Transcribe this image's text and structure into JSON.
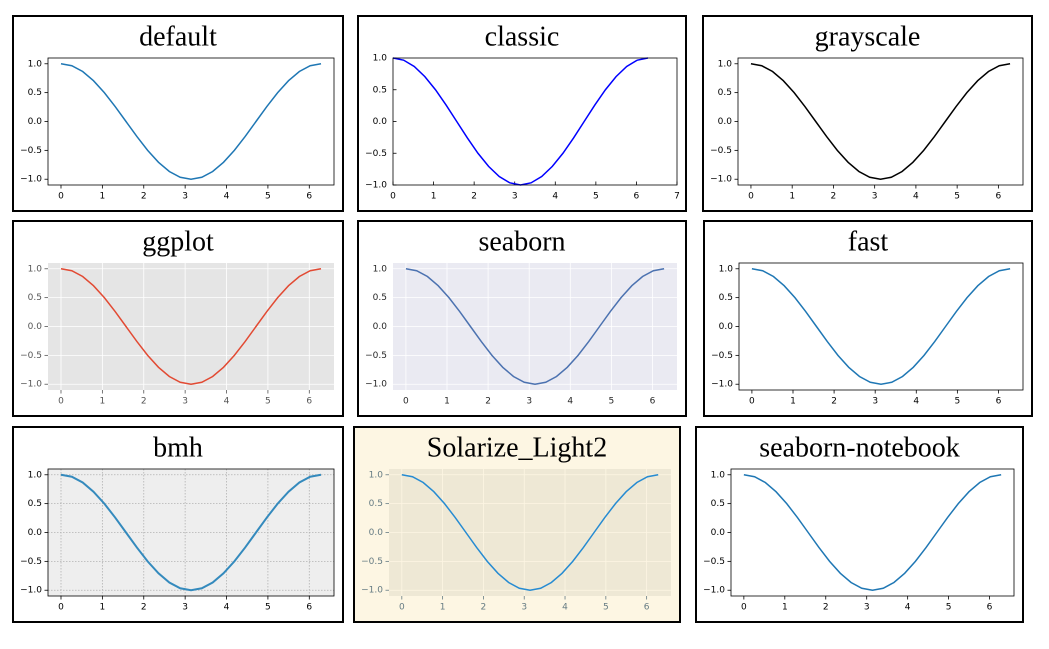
{
  "chart_data": [
    {
      "type": "line",
      "title": "default",
      "color": "#1f77b4",
      "background": "#ffffff",
      "figure_background": "#ffffff",
      "grid": false,
      "grid_color": "#ffffff",
      "grid_style": "solid",
      "tick_direction": "out",
      "tick_color": "#000000",
      "spines": true,
      "x": [
        0,
        0.262,
        0.524,
        0.785,
        1.047,
        1.309,
        1.571,
        1.833,
        2.094,
        2.356,
        2.618,
        2.88,
        3.142,
        3.403,
        3.665,
        3.927,
        4.189,
        4.451,
        4.712,
        4.974,
        5.236,
        5.498,
        5.76,
        6.021,
        6.283
      ],
      "values": [
        1,
        0.966,
        0.866,
        0.707,
        0.5,
        0.259,
        0,
        -0.259,
        -0.5,
        -0.707,
        -0.866,
        -0.966,
        -1,
        -0.966,
        -0.866,
        -0.707,
        -0.5,
        -0.259,
        0,
        0.259,
        0.5,
        0.707,
        0.866,
        0.966,
        1
      ],
      "xlim": [
        -0.314,
        6.597
      ],
      "ylim": [
        -1.1,
        1.1
      ],
      "xticks": [
        0,
        1,
        2,
        3,
        4,
        5,
        6
      ],
      "yticks": [
        {
          "value": -1,
          "label": "−1.0"
        },
        {
          "value": -0.5,
          "label": "−0.5"
        },
        {
          "value": 0,
          "label": "0.0"
        },
        {
          "value": 0.5,
          "label": "0.5"
        },
        {
          "value": 1,
          "label": "1.0"
        }
      ]
    },
    {
      "type": "line",
      "title": "classic",
      "color": "#0000ff",
      "background": "#ffffff",
      "figure_background": "#ffffff",
      "grid": false,
      "grid_color": "#ffffff",
      "grid_style": "solid",
      "tick_direction": "in",
      "tick_color": "#000000",
      "spines": true,
      "x": [
        0,
        0.262,
        0.524,
        0.785,
        1.047,
        1.309,
        1.571,
        1.833,
        2.094,
        2.356,
        2.618,
        2.88,
        3.142,
        3.403,
        3.665,
        3.927,
        4.189,
        4.451,
        4.712,
        4.974,
        5.236,
        5.498,
        5.76,
        6.021,
        6.283
      ],
      "values": [
        1,
        0.966,
        0.866,
        0.707,
        0.5,
        0.259,
        0,
        -0.259,
        -0.5,
        -0.707,
        -0.866,
        -0.966,
        -1,
        -0.966,
        -0.866,
        -0.707,
        -0.5,
        -0.259,
        0,
        0.259,
        0.5,
        0.707,
        0.866,
        0.966,
        1
      ],
      "xlim": [
        0,
        7
      ],
      "ylim": [
        -1,
        1
      ],
      "xticks": [
        0,
        1,
        2,
        3,
        4,
        5,
        6,
        7
      ],
      "yticks": [
        {
          "value": -1,
          "label": "−1.0"
        },
        {
          "value": -0.5,
          "label": "−0.5"
        },
        {
          "value": 0,
          "label": "0.0"
        },
        {
          "value": 0.5,
          "label": "0.5"
        },
        {
          "value": 1,
          "label": "1.0"
        }
      ]
    },
    {
      "type": "line",
      "title": "grayscale",
      "color": "#000000",
      "background": "#ffffff",
      "figure_background": "#ffffff",
      "grid": false,
      "grid_color": "#ffffff",
      "grid_style": "solid",
      "tick_direction": "out",
      "tick_color": "#000000",
      "spines": true,
      "x": [
        0,
        0.262,
        0.524,
        0.785,
        1.047,
        1.309,
        1.571,
        1.833,
        2.094,
        2.356,
        2.618,
        2.88,
        3.142,
        3.403,
        3.665,
        3.927,
        4.189,
        4.451,
        4.712,
        4.974,
        5.236,
        5.498,
        5.76,
        6.021,
        6.283
      ],
      "values": [
        1,
        0.966,
        0.866,
        0.707,
        0.5,
        0.259,
        0,
        -0.259,
        -0.5,
        -0.707,
        -0.866,
        -0.966,
        -1,
        -0.966,
        -0.866,
        -0.707,
        -0.5,
        -0.259,
        0,
        0.259,
        0.5,
        0.707,
        0.866,
        0.966,
        1
      ],
      "xlim": [
        -0.314,
        6.597
      ],
      "ylim": [
        -1.1,
        1.1
      ],
      "xticks": [
        0,
        1,
        2,
        3,
        4,
        5,
        6
      ],
      "yticks": [
        {
          "value": -1,
          "label": "−1.0"
        },
        {
          "value": -0.5,
          "label": "−0.5"
        },
        {
          "value": 0,
          "label": "0.0"
        },
        {
          "value": 0.5,
          "label": "0.5"
        },
        {
          "value": 1,
          "label": "1.0"
        }
      ]
    },
    {
      "type": "line",
      "title": "ggplot",
      "color": "#e24a33",
      "background": "#e5e5e5",
      "figure_background": "#ffffff",
      "grid": true,
      "grid_color": "#ffffff",
      "grid_style": "solid",
      "tick_direction": "out",
      "tick_color": "#555555",
      "spines": false,
      "x": [
        0,
        0.262,
        0.524,
        0.785,
        1.047,
        1.309,
        1.571,
        1.833,
        2.094,
        2.356,
        2.618,
        2.88,
        3.142,
        3.403,
        3.665,
        3.927,
        4.189,
        4.451,
        4.712,
        4.974,
        5.236,
        5.498,
        5.76,
        6.021,
        6.283
      ],
      "values": [
        1,
        0.966,
        0.866,
        0.707,
        0.5,
        0.259,
        0,
        -0.259,
        -0.5,
        -0.707,
        -0.866,
        -0.966,
        -1,
        -0.966,
        -0.866,
        -0.707,
        -0.5,
        -0.259,
        0,
        0.259,
        0.5,
        0.707,
        0.866,
        0.966,
        1
      ],
      "xlim": [
        -0.314,
        6.597
      ],
      "ylim": [
        -1.1,
        1.1
      ],
      "xticks": [
        0,
        1,
        2,
        3,
        4,
        5,
        6
      ],
      "yticks": [
        {
          "value": -1,
          "label": "−1.0"
        },
        {
          "value": -0.5,
          "label": "−0.5"
        },
        {
          "value": 0,
          "label": "0.0"
        },
        {
          "value": 0.5,
          "label": "0.5"
        },
        {
          "value": 1,
          "label": "1.0"
        }
      ]
    },
    {
      "type": "line",
      "title": "seaborn",
      "color": "#4c72b0",
      "background": "#eaeaf2",
      "figure_background": "#ffffff",
      "grid": true,
      "grid_color": "#ffffff",
      "grid_style": "solid",
      "tick_direction": "none",
      "tick_color": "#262626",
      "spines": false,
      "x": [
        0,
        0.262,
        0.524,
        0.785,
        1.047,
        1.309,
        1.571,
        1.833,
        2.094,
        2.356,
        2.618,
        2.88,
        3.142,
        3.403,
        3.665,
        3.927,
        4.189,
        4.451,
        4.712,
        4.974,
        5.236,
        5.498,
        5.76,
        6.021,
        6.283
      ],
      "values": [
        1,
        0.966,
        0.866,
        0.707,
        0.5,
        0.259,
        0,
        -0.259,
        -0.5,
        -0.707,
        -0.866,
        -0.966,
        -1,
        -0.966,
        -0.866,
        -0.707,
        -0.5,
        -0.259,
        0,
        0.259,
        0.5,
        0.707,
        0.866,
        0.966,
        1
      ],
      "xlim": [
        -0.314,
        6.597
      ],
      "ylim": [
        -1.1,
        1.1
      ],
      "xticks": [
        0,
        1,
        2,
        3,
        4,
        5,
        6
      ],
      "yticks": [
        {
          "value": -1,
          "label": "−1.0"
        },
        {
          "value": -0.5,
          "label": "−0.5"
        },
        {
          "value": 0,
          "label": "0.0"
        },
        {
          "value": 0.5,
          "label": "0.5"
        },
        {
          "value": 1,
          "label": "1.0"
        }
      ]
    },
    {
      "type": "line",
      "title": "fast",
      "color": "#1f77b4",
      "background": "#ffffff",
      "figure_background": "#ffffff",
      "grid": false,
      "grid_color": "#ffffff",
      "grid_style": "solid",
      "tick_direction": "out",
      "tick_color": "#000000",
      "spines": true,
      "x": [
        0,
        0.262,
        0.524,
        0.785,
        1.047,
        1.309,
        1.571,
        1.833,
        2.094,
        2.356,
        2.618,
        2.88,
        3.142,
        3.403,
        3.665,
        3.927,
        4.189,
        4.451,
        4.712,
        4.974,
        5.236,
        5.498,
        5.76,
        6.021,
        6.283
      ],
      "values": [
        1,
        0.966,
        0.866,
        0.707,
        0.5,
        0.259,
        0,
        -0.259,
        -0.5,
        -0.707,
        -0.866,
        -0.966,
        -1,
        -0.966,
        -0.866,
        -0.707,
        -0.5,
        -0.259,
        0,
        0.259,
        0.5,
        0.707,
        0.866,
        0.966,
        1
      ],
      "xlim": [
        -0.314,
        6.597
      ],
      "ylim": [
        -1.1,
        1.1
      ],
      "xticks": [
        0,
        1,
        2,
        3,
        4,
        5,
        6
      ],
      "yticks": [
        {
          "value": -1,
          "label": "−1.0"
        },
        {
          "value": -0.5,
          "label": "−0.5"
        },
        {
          "value": 0,
          "label": "0.0"
        },
        {
          "value": 0.5,
          "label": "0.5"
        },
        {
          "value": 1,
          "label": "1.0"
        }
      ]
    },
    {
      "type": "line",
      "title": "bmh",
      "color": "#348abd",
      "background": "#eeeeee",
      "figure_background": "#ffffff",
      "grid": true,
      "grid_color": "#b2b2b2",
      "grid_style": "dotted",
      "tick_direction": "out",
      "tick_color": "#000000",
      "spines": true,
      "x": [
        0,
        0.262,
        0.524,
        0.785,
        1.047,
        1.309,
        1.571,
        1.833,
        2.094,
        2.356,
        2.618,
        2.88,
        3.142,
        3.403,
        3.665,
        3.927,
        4.189,
        4.451,
        4.712,
        4.974,
        5.236,
        5.498,
        5.76,
        6.021,
        6.283
      ],
      "values": [
        1,
        0.966,
        0.866,
        0.707,
        0.5,
        0.259,
        0,
        -0.259,
        -0.5,
        -0.707,
        -0.866,
        -0.966,
        -1,
        -0.966,
        -0.866,
        -0.707,
        -0.5,
        -0.259,
        0,
        0.259,
        0.5,
        0.707,
        0.866,
        0.966,
        1
      ],
      "xlim": [
        -0.314,
        6.597
      ],
      "ylim": [
        -1.1,
        1.1
      ],
      "xticks": [
        0,
        1,
        2,
        3,
        4,
        5,
        6
      ],
      "yticks": [
        {
          "value": -1,
          "label": "−1.0"
        },
        {
          "value": -0.5,
          "label": "−0.5"
        },
        {
          "value": 0,
          "label": "0.0"
        },
        {
          "value": 0.5,
          "label": "0.5"
        },
        {
          "value": 1,
          "label": "1.0"
        }
      ]
    },
    {
      "type": "line",
      "title": "Solarize_Light2",
      "color": "#268bd2",
      "background": "#eee8d5",
      "figure_background": "#fdf6e3",
      "grid": true,
      "grid_color": "#fdf6e3",
      "grid_style": "solid",
      "tick_direction": "out",
      "tick_color": "#657b83",
      "spines": false,
      "x": [
        0,
        0.262,
        0.524,
        0.785,
        1.047,
        1.309,
        1.571,
        1.833,
        2.094,
        2.356,
        2.618,
        2.88,
        3.142,
        3.403,
        3.665,
        3.927,
        4.189,
        4.451,
        4.712,
        4.974,
        5.236,
        5.498,
        5.76,
        6.021,
        6.283
      ],
      "values": [
        1,
        0.966,
        0.866,
        0.707,
        0.5,
        0.259,
        0,
        -0.259,
        -0.5,
        -0.707,
        -0.866,
        -0.966,
        -1,
        -0.966,
        -0.866,
        -0.707,
        -0.5,
        -0.259,
        0,
        0.259,
        0.5,
        0.707,
        0.866,
        0.966,
        1
      ],
      "xlim": [
        -0.314,
        6.597
      ],
      "ylim": [
        -1.1,
        1.1
      ],
      "xticks": [
        0,
        1,
        2,
        3,
        4,
        5,
        6
      ],
      "yticks": [
        {
          "value": -1,
          "label": "−1.0"
        },
        {
          "value": -0.5,
          "label": "−0.5"
        },
        {
          "value": 0,
          "label": "0.0"
        },
        {
          "value": 0.5,
          "label": "0.5"
        },
        {
          "value": 1,
          "label": "1.0"
        }
      ]
    },
    {
      "type": "line",
      "title": "seaborn-notebook",
      "color": "#1f77b4",
      "background": "#ffffff",
      "figure_background": "#ffffff",
      "grid": false,
      "grid_color": "#ffffff",
      "grid_style": "solid",
      "tick_direction": "out",
      "tick_color": "#000000",
      "spines": true,
      "x": [
        0,
        0.262,
        0.524,
        0.785,
        1.047,
        1.309,
        1.571,
        1.833,
        2.094,
        2.356,
        2.618,
        2.88,
        3.142,
        3.403,
        3.665,
        3.927,
        4.189,
        4.451,
        4.712,
        4.974,
        5.236,
        5.498,
        5.76,
        6.021,
        6.283
      ],
      "values": [
        1,
        0.966,
        0.866,
        0.707,
        0.5,
        0.259,
        0,
        -0.259,
        -0.5,
        -0.707,
        -0.866,
        -0.966,
        -1,
        -0.966,
        -0.866,
        -0.707,
        -0.5,
        -0.259,
        0,
        0.259,
        0.5,
        0.707,
        0.866,
        0.966,
        1
      ],
      "xlim": [
        -0.314,
        6.597
      ],
      "ylim": [
        -1.1,
        1.1
      ],
      "xticks": [
        0,
        1,
        2,
        3,
        4,
        5,
        6
      ],
      "yticks": [
        {
          "value": -1,
          "label": "−1.0"
        },
        {
          "value": -0.5,
          "label": "−0.5"
        },
        {
          "value": 0,
          "label": "0.0"
        },
        {
          "value": 0.5,
          "label": "0.5"
        },
        {
          "value": 1,
          "label": "1.0"
        }
      ]
    }
  ]
}
